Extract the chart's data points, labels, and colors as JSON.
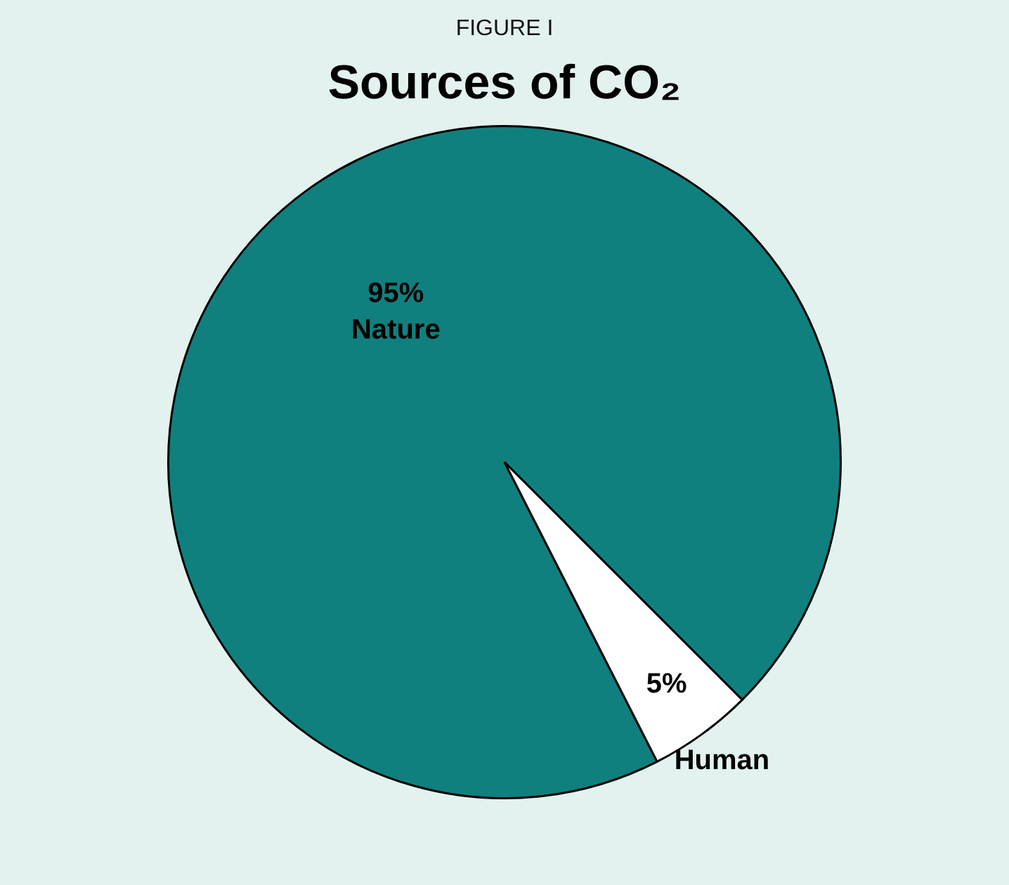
{
  "chart_data": {
    "type": "pie",
    "subtitle": "FIGURE I",
    "title": "Sources of CO₂",
    "categories": [
      "Nature",
      "Human"
    ],
    "values": [
      95,
      5
    ],
    "colors": [
      "#10807e",
      "#ffffff"
    ],
    "value_labels": [
      "95%",
      "5%"
    ],
    "legend": false
  }
}
